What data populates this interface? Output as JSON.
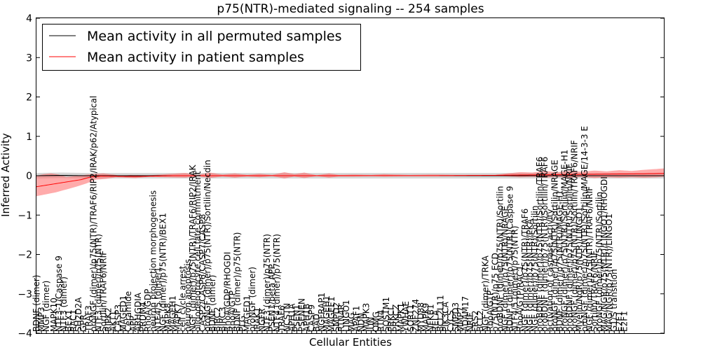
{
  "chart_data": {
    "type": "line",
    "title": "p75(NTR)-mediated signaling -- 254 samples",
    "xlabel": "Cellular Entities",
    "ylabel": "Inferred Activity",
    "ylim": [
      -4,
      4
    ],
    "yticks": [
      -4,
      -3,
      -2,
      -1,
      0,
      1,
      2,
      3,
      4
    ],
    "ytick_labels": [
      "−4",
      "−3",
      "−2",
      "−1",
      "0",
      "1",
      "2",
      "3",
      "4"
    ],
    "x_count": 254,
    "legend": {
      "placement": "top-left",
      "entries": [
        {
          "label": "Mean activity in all permuted samples",
          "color": "#000000"
        },
        {
          "label": "Mean activity in patient samples",
          "color": "#ff0000"
        }
      ]
    },
    "series": [
      {
        "name": "Mean activity in all permuted samples",
        "color": "#000000",
        "description": "flat line at approximately 0",
        "anchors": [
          [
            0,
            0.0
          ],
          [
            10,
            0.01
          ],
          [
            20,
            0.0
          ],
          [
            254,
            0.0
          ]
        ],
        "band": [
          [
            0,
            0.07
          ],
          [
            254,
            0.07
          ]
        ],
        "band_color": "#bbbbbb"
      },
      {
        "name": "Mean activity in patient samples",
        "color": "#ff0000",
        "anchors": [
          [
            0,
            -0.28
          ],
          [
            6,
            -0.22
          ],
          [
            12,
            -0.16
          ],
          [
            18,
            -0.1
          ],
          [
            22,
            -0.03
          ],
          [
            26,
            -0.01
          ],
          [
            40,
            -0.02
          ],
          [
            55,
            0.0
          ],
          [
            80,
            0.0
          ],
          [
            120,
            0.0
          ],
          [
            160,
            0.0
          ],
          [
            185,
            0.01
          ],
          [
            200,
            0.02
          ],
          [
            215,
            0.03
          ],
          [
            230,
            0.04
          ],
          [
            245,
            0.05
          ],
          [
            254,
            0.06
          ]
        ],
        "band_upper": [
          [
            0,
            0.0
          ],
          [
            3,
            0.04
          ],
          [
            6,
            0.06
          ],
          [
            9,
            0.03
          ],
          [
            12,
            -0.03
          ],
          [
            17,
            0.0
          ],
          [
            22,
            0.04
          ],
          [
            27,
            0.06
          ],
          [
            32,
            0.02
          ],
          [
            34,
            -0.01
          ],
          [
            38,
            0.02
          ],
          [
            45,
            0.01
          ],
          [
            60,
            0.07
          ],
          [
            65,
            0.02
          ],
          [
            70,
            0.08
          ],
          [
            75,
            0.03
          ],
          [
            80,
            0.06
          ],
          [
            85,
            0.02
          ],
          [
            90,
            0.05
          ],
          [
            95,
            0.02
          ],
          [
            100,
            0.09
          ],
          [
            104,
            0.04
          ],
          [
            108,
            0.08
          ],
          [
            113,
            0.01
          ],
          [
            118,
            0.06
          ],
          [
            122,
            0.02
          ],
          [
            128,
            0.03
          ],
          [
            135,
            0.02
          ],
          [
            140,
            0.04
          ],
          [
            150,
            0.02
          ],
          [
            160,
            0.03
          ],
          [
            170,
            0.02
          ],
          [
            185,
            0.02
          ],
          [
            190,
            0.06
          ],
          [
            195,
            0.09
          ],
          [
            200,
            0.08
          ],
          [
            205,
            0.12
          ],
          [
            210,
            0.09
          ],
          [
            215,
            0.12
          ],
          [
            220,
            0.1
          ],
          [
            225,
            0.13
          ],
          [
            230,
            0.11
          ],
          [
            235,
            0.14
          ],
          [
            240,
            0.12
          ],
          [
            245,
            0.15
          ],
          [
            250,
            0.17
          ],
          [
            254,
            0.19
          ]
        ],
        "band_lower": [
          [
            0,
            -0.52
          ],
          [
            4,
            -0.47
          ],
          [
            8,
            -0.42
          ],
          [
            12,
            -0.35
          ],
          [
            16,
            -0.28
          ],
          [
            20,
            -0.2
          ],
          [
            24,
            -0.1
          ],
          [
            28,
            -0.08
          ],
          [
            32,
            -0.04
          ],
          [
            36,
            -0.05
          ],
          [
            40,
            -0.06
          ],
          [
            45,
            -0.03
          ],
          [
            60,
            -0.05
          ],
          [
            65,
            -0.01
          ],
          [
            70,
            -0.06
          ],
          [
            75,
            -0.02
          ],
          [
            80,
            -0.05
          ],
          [
            85,
            -0.02
          ],
          [
            90,
            -0.04
          ],
          [
            95,
            -0.01
          ],
          [
            100,
            -0.07
          ],
          [
            104,
            -0.02
          ],
          [
            108,
            -0.06
          ],
          [
            113,
            -0.01
          ],
          [
            118,
            -0.05
          ],
          [
            122,
            -0.02
          ],
          [
            128,
            -0.02
          ],
          [
            135,
            -0.01
          ],
          [
            140,
            -0.02
          ],
          [
            150,
            -0.01
          ],
          [
            160,
            -0.01
          ],
          [
            170,
            -0.01
          ],
          [
            185,
            -0.01
          ],
          [
            190,
            -0.02
          ],
          [
            195,
            -0.04
          ],
          [
            200,
            -0.03
          ],
          [
            205,
            -0.05
          ],
          [
            210,
            -0.03
          ],
          [
            215,
            -0.05
          ],
          [
            220,
            -0.03
          ],
          [
            225,
            -0.06
          ],
          [
            230,
            -0.04
          ],
          [
            235,
            -0.05
          ],
          [
            240,
            -0.04
          ],
          [
            245,
            -0.05
          ],
          [
            250,
            -0.04
          ],
          [
            254,
            -0.02
          ]
        ],
        "band_color": "#ff6666"
      }
    ],
    "x_tick_labels": [
      {
        "i": 0,
        "label": "BDNF (dimer)"
      },
      {
        "i": 2,
        "label": "MMP3"
      },
      {
        "i": 4,
        "label": "NGF (dimer)"
      },
      {
        "i": 7,
        "label": "MAPK10"
      },
      {
        "i": 9,
        "label": "NTF3-1/Caspase 9"
      },
      {
        "i": 11,
        "label": "NTF3 (dimer)"
      },
      {
        "i": 13,
        "label": "BEX1"
      },
      {
        "i": 15,
        "label": "RAC1"
      },
      {
        "i": 17,
        "label": "SH2D2A"
      },
      {
        "i": 19,
        "label": "GPR"
      },
      {
        "i": 21,
        "label": "TRAF3"
      },
      {
        "i": 23,
        "label": "proNGF (dimer)/p75(NTR)/TRAF6/RIP2/IRAK/p62/Atypical"
      },
      {
        "i": 25,
        "label": "NTF3 (dimer)/p75(NTR)"
      },
      {
        "i": 27,
        "label": "Sortilin/TRAF6/NRIF"
      },
      {
        "i": 29,
        "label": "RIPK2"
      },
      {
        "i": 31,
        "label": "AKT1"
      },
      {
        "i": 33,
        "label": "CASP3"
      },
      {
        "i": 35,
        "label": "MAGED1"
      },
      {
        "i": 37,
        "label": "Ceramide"
      },
      {
        "i": 39,
        "label": "APP"
      },
      {
        "i": 41,
        "label": "ARHGDIA"
      },
      {
        "i": 43,
        "label": "PRDM4"
      },
      {
        "i": 45,
        "label": "RhoA/GDP"
      },
      {
        "i": 47,
        "label": "neuron projection morphogenesis"
      },
      {
        "i": 49,
        "label": "NTF4/5 (dimer)"
      },
      {
        "i": 51,
        "label": "NGF (dimer)/p75(NTR)/BEX1"
      },
      {
        "i": 53,
        "label": "MAPK8"
      },
      {
        "i": 55,
        "label": "MAGEH1"
      },
      {
        "i": 57,
        "label": "MAPK7"
      },
      {
        "i": 59,
        "label": "cell cycle arrest"
      },
      {
        "i": 61,
        "label": "neuron apoptosis"
      },
      {
        "i": 63,
        "label": "NGF (dimer)/p75(NTR)/TRAF6/RIP2/IRAK"
      },
      {
        "i": 65,
        "label": "oligodendrocyte cell fate commitment"
      },
      {
        "i": 67,
        "label": "CASP2/CASP6/CASP7/CASP8"
      },
      {
        "i": 69,
        "label": "proNGF (dimer)/p75(NTR)/Sortilin/Necdin"
      },
      {
        "i": 71,
        "label": "BDNF (dimer)"
      },
      {
        "i": 73,
        "label": "BIRC2"
      },
      {
        "i": 75,
        "label": "BIRC3"
      },
      {
        "i": 77,
        "label": "RhoA/GDP/RHOGDI"
      },
      {
        "i": 79,
        "label": "RhoA/GTP"
      },
      {
        "i": 81,
        "label": "BDNF (dimer)/p75(NTR)"
      },
      {
        "i": 83,
        "label": "PLG"
      },
      {
        "i": 85,
        "label": "MAGED1"
      },
      {
        "i": 87,
        "label": "proNGF (dimer)"
      },
      {
        "i": 89,
        "label": "IRAK1"
      },
      {
        "i": 91,
        "label": "NGFR"
      },
      {
        "i": 93,
        "label": "NTF3 (dimer)/p75(NTR)"
      },
      {
        "i": 95,
        "label": "PSEN1/beta APP"
      },
      {
        "i": 97,
        "label": "NTF4 (dimer)/p75(NTR)"
      },
      {
        "i": 99,
        "label": "TRAF6"
      },
      {
        "i": 101,
        "label": "NCSTN"
      },
      {
        "i": 103,
        "label": "APH1A"
      },
      {
        "i": 105,
        "label": "PSEN1"
      },
      {
        "i": 107,
        "label": "PSENEN"
      },
      {
        "i": 109,
        "label": "APH1B"
      },
      {
        "i": 111,
        "label": "CASP9"
      },
      {
        "i": 113,
        "label": "BAD"
      },
      {
        "i": 115,
        "label": "NGFRAP1"
      },
      {
        "i": 117,
        "label": "MAGEH1"
      },
      {
        "i": 119,
        "label": "MAGEE1"
      },
      {
        "i": 121,
        "label": "SMPD2"
      },
      {
        "i": 123,
        "label": "RTN4R"
      },
      {
        "i": 125,
        "label": "LINGO1"
      },
      {
        "i": 127,
        "label": "MAG"
      },
      {
        "i": 129,
        "label": "APAF1"
      },
      {
        "i": 131,
        "label": "NDN"
      },
      {
        "i": 133,
        "label": "MAPK3"
      },
      {
        "i": 135,
        "label": "JUN"
      },
      {
        "i": 137,
        "label": "OMG"
      },
      {
        "i": 139,
        "label": "RTN4"
      },
      {
        "i": 141,
        "label": "SQSTM1"
      },
      {
        "i": 143,
        "label": "PRKCI"
      },
      {
        "i": 145,
        "label": "PRKCZ"
      },
      {
        "i": 147,
        "label": "MAPK1"
      },
      {
        "i": 149,
        "label": "YWHAE"
      },
      {
        "i": 151,
        "label": "SORT1"
      },
      {
        "i": 153,
        "label": "ZNF274"
      },
      {
        "i": 155,
        "label": "MYD88"
      },
      {
        "i": 157,
        "label": "MAPK9"
      },
      {
        "i": 159,
        "label": "NFKB1"
      },
      {
        "i": 161,
        "label": "RELA"
      },
      {
        "i": 163,
        "label": "BCL2L11"
      },
      {
        "i": 165,
        "label": "PIK3CA"
      },
      {
        "i": 167,
        "label": "CYCS"
      },
      {
        "i": 169,
        "label": "SMPD3"
      },
      {
        "i": 171,
        "label": "MMP7"
      },
      {
        "i": 173,
        "label": "ADAM17"
      },
      {
        "i": 175,
        "label": "NRIF"
      },
      {
        "i": 177,
        "label": "FRS2"
      },
      {
        "i": 179,
        "label": "BCL2"
      },
      {
        "i": 181,
        "label": "NGF (dimer)/TRKA"
      },
      {
        "i": 183,
        "label": "RhoA/GTP"
      },
      {
        "i": 185,
        "label": "p75(NTR)/p75 ECD"
      },
      {
        "i": 187,
        "label": "proBDNF (dimer)/p75(NTR)/Sortilin"
      },
      {
        "i": 189,
        "label": "NGF (dimer)/p75(NTR)/NRAGE"
      },
      {
        "i": 191,
        "label": "BDNF (dimer)/p75(NTR)/Caspase 9"
      },
      {
        "i": 193,
        "label": "NTF4/5 (dimer)/p75(NTR)"
      },
      {
        "i": 195,
        "label": "RhoA/GTP/RAC1"
      },
      {
        "i": 197,
        "label": "NGF (dimer)/p75(NTR)/TRAF6"
      },
      {
        "i": 199,
        "label": "NGF (dimer)/p75(NTR)/PKA"
      },
      {
        "i": 201,
        "label": "NGF (dimer)/p75(NTR)/Sortilin"
      },
      {
        "i": 203,
        "label": "proBDNF (dimer)/p75(NTR)/Sortilin/TRAF6"
      },
      {
        "i": 205,
        "label": "proBDNF (dimer)/p75(NTR)/Sortilin/TRAF6"
      },
      {
        "i": 207,
        "label": "activation of caspase activity"
      },
      {
        "i": 209,
        "label": "proNGF (dimer)/p75(NTR)/Sortilin/NRAGE"
      },
      {
        "i": 211,
        "label": "BDNF (dimer)/p75(NTR)/MAGE-H1"
      },
      {
        "i": 213,
        "label": "proNGF (dimer)/p75(NTR)/Sortilin/MAGE-H1"
      },
      {
        "i": 215,
        "label": "proBDNF (dimer)/p75(NTR)/Sortilin/NRIF"
      },
      {
        "i": 217,
        "label": "proNGF (dimer)/p75(NTR)/Sortilin/TRAF6/NRIF"
      },
      {
        "i": 219,
        "label": "Myelin/NgR/p75(NTR)/LINGO1"
      },
      {
        "i": 221,
        "label": "proNGF (dimer)/p75(NTR)/Sortilin/MAGE/14-3-3 E"
      },
      {
        "i": 223,
        "label": "NGF (dimer)/p75(NTR)/TRAF6/NRIF"
      },
      {
        "i": 225,
        "label": "Sortilin/TRAF6/NRIF"
      },
      {
        "i": 227,
        "label": "proNGF (dimer)/p75(NTR)/Sortilin"
      },
      {
        "i": 229,
        "label": "MAG/NGR/p75(NTR)/LINGO1/RHOGDI"
      },
      {
        "i": 231,
        "label": "MAG/NGR/p75(NTR)/LINGO1"
      },
      {
        "i": 233,
        "label": "G1/S transition"
      },
      {
        "i": 235,
        "label": "E2F1"
      },
      {
        "i": 237,
        "label": "E2F1"
      }
    ]
  }
}
